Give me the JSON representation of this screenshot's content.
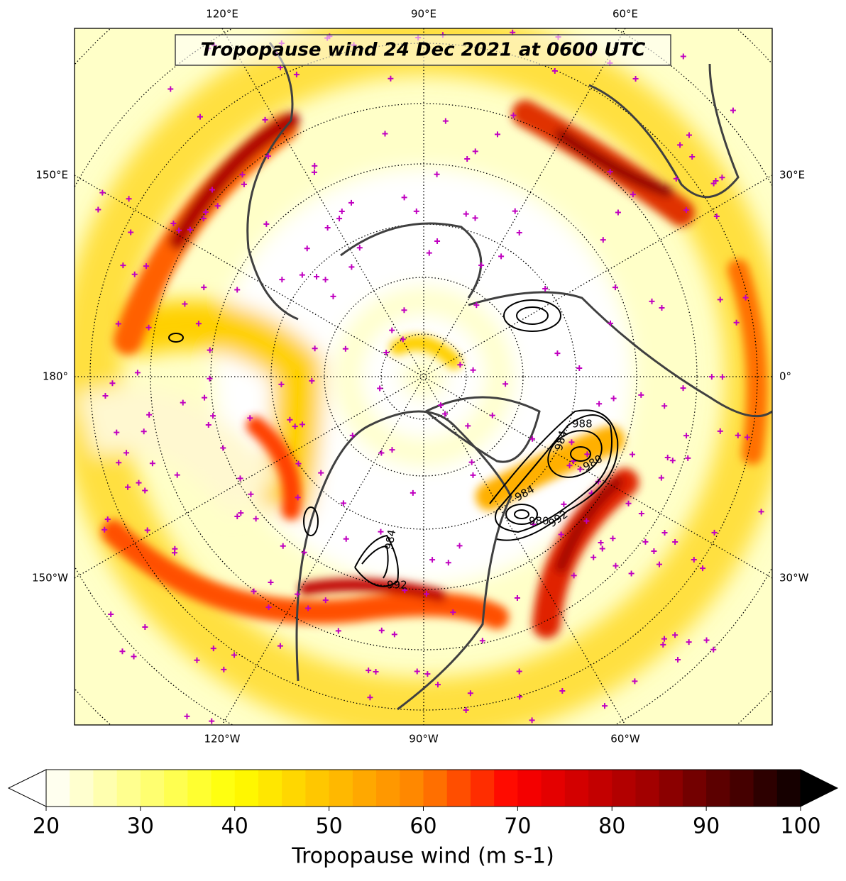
{
  "title": "Tropopause wind 24 Dec 2021 at 0600 UTC",
  "longitude_labels": {
    "top": [
      "120°E",
      "90°E",
      "60°E"
    ],
    "bottom": [
      "120°W",
      "90°W",
      "60°W"
    ],
    "left": [
      "150°E",
      "180°",
      "150°W"
    ],
    "right": [
      "30°E",
      "0°",
      "30°W"
    ]
  },
  "contour_labels": [
    "988",
    "984",
    "980",
    "984",
    "980",
    "992",
    "992",
    "984"
  ],
  "colorbar": {
    "label": "Tropopause wind (m s-1)",
    "range": [
      20,
      100
    ],
    "ticks": [
      20,
      30,
      40,
      50,
      60,
      70,
      80,
      90,
      100
    ]
  }
}
